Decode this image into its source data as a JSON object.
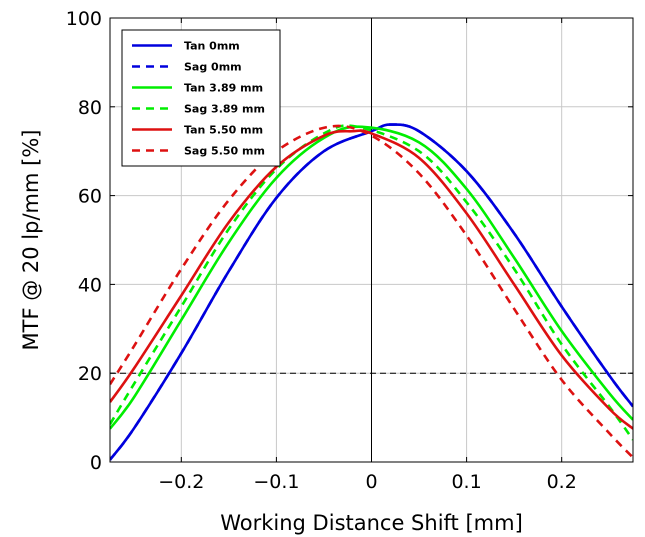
{
  "chart_data": {
    "type": "line",
    "title": "",
    "xlabel": "Working Distance Shift [mm]",
    "ylabel": "MTF @ 20 lp/mm [%]",
    "xlim": [
      -0.275,
      0.275
    ],
    "ylim": [
      0,
      100
    ],
    "x_ticks": [
      -0.2,
      -0.1,
      0,
      0.1,
      0.2
    ],
    "x_tick_labels": [
      "−0.2",
      "−0.1",
      "0",
      "0.1",
      "0.2"
    ],
    "y_ticks": [
      0,
      20,
      40,
      60,
      80,
      100
    ],
    "y_tick_labels": [
      "0",
      "20",
      "40",
      "60",
      "80",
      "100"
    ],
    "grid": true,
    "legend_position": "top-left",
    "reference_lines": [
      {
        "orientation": "vertical",
        "x": 0,
        "style": "solid"
      },
      {
        "orientation": "horizontal",
        "y": 20,
        "style": "dashed"
      }
    ],
    "series": [
      {
        "name": "Tan 0mm",
        "color": "#0000dd",
        "dash": "solid",
        "x": [
          -0.275,
          -0.25,
          -0.2,
          -0.15,
          -0.1,
          -0.05,
          0.0,
          0.02,
          0.05,
          0.1,
          0.15,
          0.2,
          0.25,
          0.275
        ],
        "y": [
          0.5,
          7.5,
          24.5,
          43,
          59.5,
          70,
          74.5,
          76,
          74.5,
          65.5,
          51.5,
          35,
          19.5,
          12.5
        ]
      },
      {
        "name": "Sag 0mm",
        "color": "#0000dd",
        "dash": "dashed",
        "x": [
          -0.275,
          -0.25,
          -0.2,
          -0.15,
          -0.1,
          -0.05,
          0.0,
          0.02,
          0.05,
          0.1,
          0.15,
          0.2,
          0.25,
          0.275
        ],
        "y": [
          0.5,
          7.5,
          24.5,
          43,
          59.5,
          70,
          74.5,
          76,
          74.5,
          65.5,
          51.5,
          35,
          19.5,
          12.5
        ]
      },
      {
        "name": "Tan 3.89 mm",
        "color": "#00ee00",
        "dash": "solid",
        "x": [
          -0.275,
          -0.25,
          -0.2,
          -0.15,
          -0.1,
          -0.05,
          -0.01,
          0.05,
          0.1,
          0.15,
          0.2,
          0.25,
          0.275
        ],
        "y": [
          7.5,
          14.5,
          32,
          49.5,
          64,
          73,
          75.5,
          72,
          61.5,
          46,
          29.5,
          15.5,
          9.5
        ]
      },
      {
        "name": "Sag 3.89 mm",
        "color": "#00ee00",
        "dash": "dashed",
        "x": [
          -0.275,
          -0.25,
          -0.2,
          -0.15,
          -0.1,
          -0.05,
          -0.015,
          0.05,
          0.1,
          0.15,
          0.2,
          0.25,
          0.275
        ],
        "y": [
          8.5,
          17.5,
          35,
          52.5,
          66,
          74,
          75.5,
          70,
          58.5,
          43.5,
          26.5,
          12.5,
          5
        ]
      },
      {
        "name": "Tan 5.50 mm",
        "color": "#dd1111",
        "dash": "solid",
        "x": [
          -0.275,
          -0.25,
          -0.2,
          -0.15,
          -0.1,
          -0.05,
          -0.02,
          0.0,
          0.05,
          0.1,
          0.15,
          0.2,
          0.25,
          0.275
        ],
        "y": [
          13.5,
          21,
          37.5,
          54,
          66.5,
          73.5,
          74.5,
          74,
          68.5,
          56,
          40,
          24,
          12,
          7.5
        ]
      },
      {
        "name": "Sag 5.50 mm",
        "color": "#dd1111",
        "dash": "dashed",
        "x": [
          -0.275,
          -0.25,
          -0.2,
          -0.15,
          -0.1,
          -0.045,
          0.0,
          0.05,
          0.1,
          0.15,
          0.2,
          0.25,
          0.275
        ],
        "y": [
          17.5,
          26,
          43.5,
          59,
          70,
          75.5,
          73.5,
          65,
          51,
          34.5,
          18.5,
          6.5,
          1
        ]
      }
    ]
  }
}
